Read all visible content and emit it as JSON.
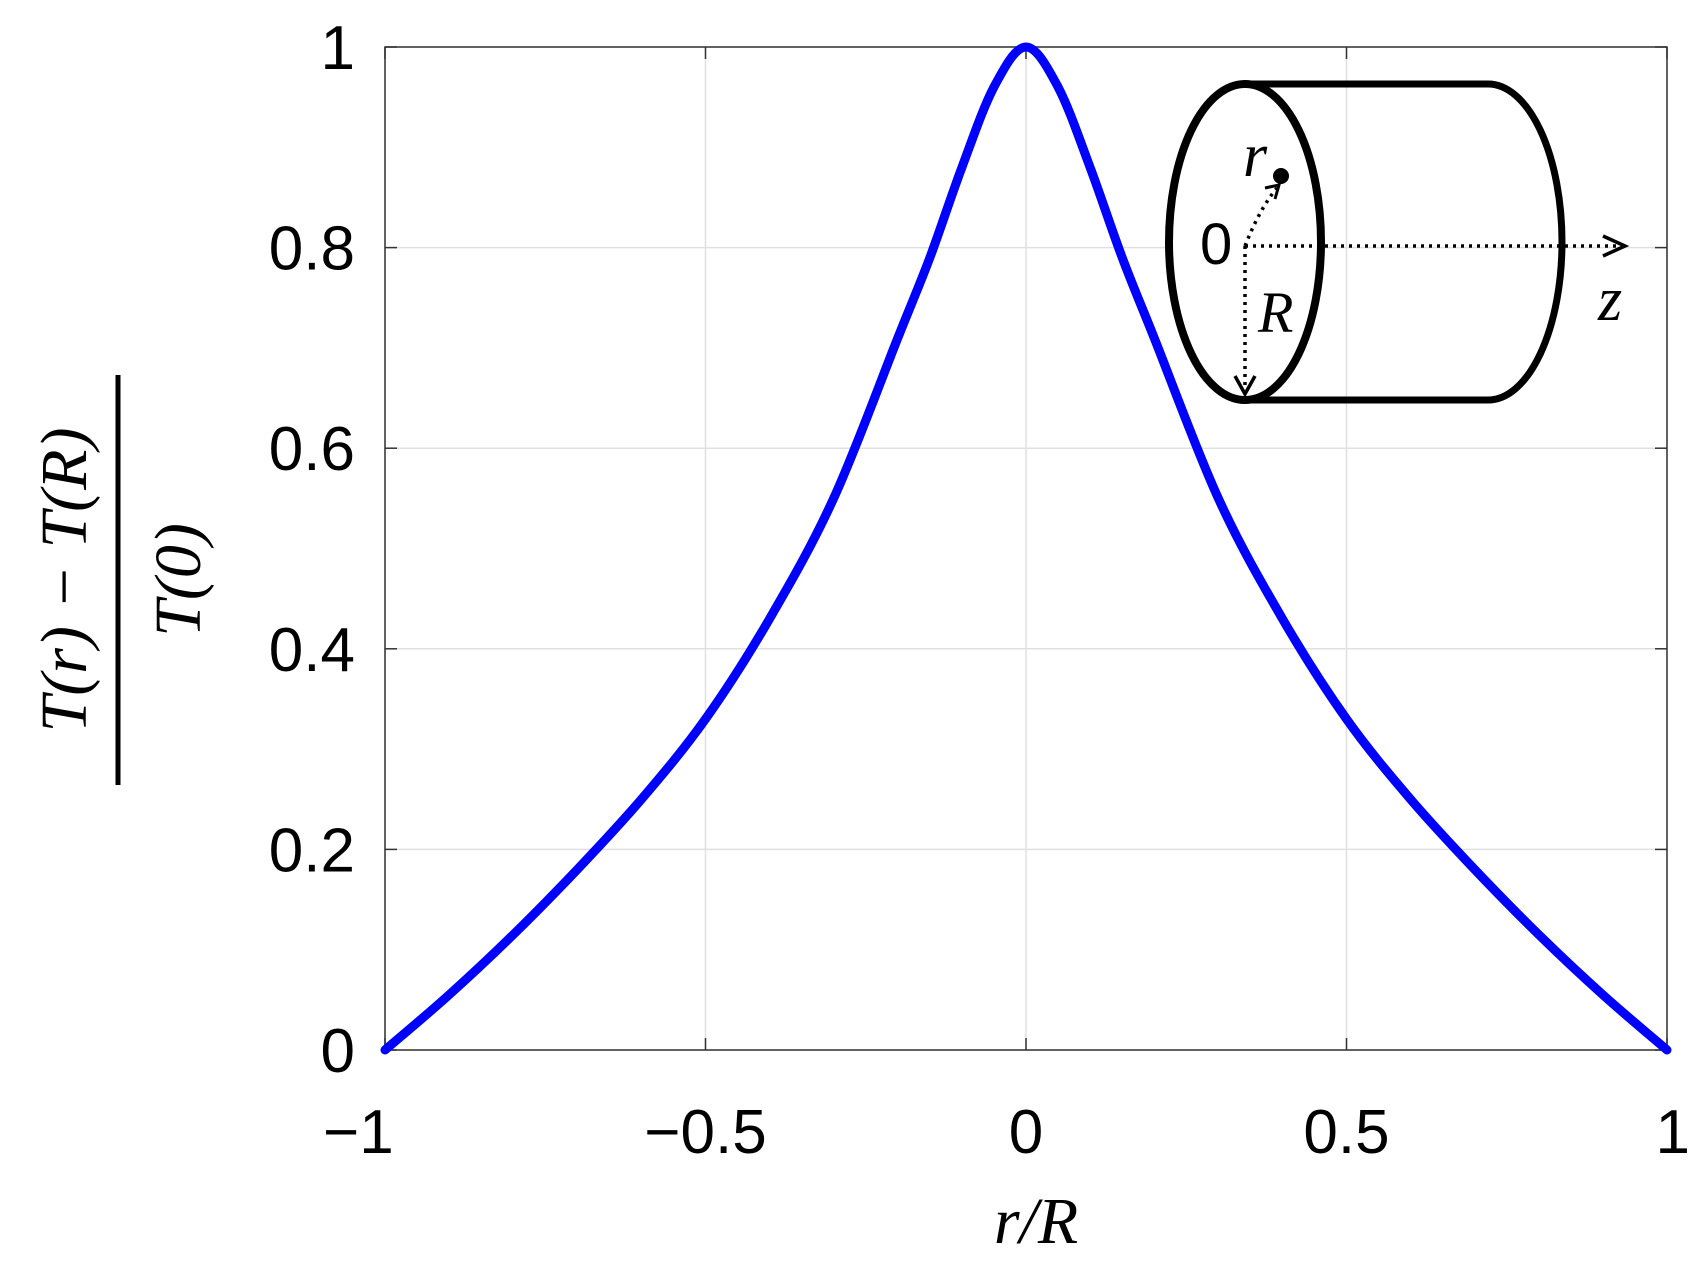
{
  "chart_data": {
    "type": "line",
    "title": "",
    "xlabel": "r/R",
    "ylabel_numerator": "T(r) − T(R)",
    "ylabel_denominator": "T(0)",
    "xlim": [
      -1,
      1
    ],
    "ylim": [
      0,
      1
    ],
    "grid": true,
    "x_ticks": [
      -1,
      -0.5,
      0,
      0.5,
      1
    ],
    "x_tick_labels": [
      "−1",
      "−0.5",
      "0",
      "0.5",
      "1"
    ],
    "y_ticks": [
      0,
      0.2,
      0.4,
      0.6,
      0.8,
      1
    ],
    "y_tick_labels": [
      "0",
      "0.2",
      "0.4",
      "0.6",
      "0.8",
      "1"
    ],
    "series": [
      {
        "color": "#0000ff",
        "x": [
          -1.0,
          -0.9,
          -0.8,
          -0.7,
          -0.6,
          -0.5,
          -0.4,
          -0.3,
          -0.2,
          -0.15,
          -0.1,
          -0.05,
          0.0,
          0.05,
          0.1,
          0.15,
          0.2,
          0.3,
          0.4,
          0.5,
          0.6,
          0.7,
          0.8,
          0.9,
          1.0
        ],
        "y": [
          0.0,
          0.055,
          0.115,
          0.18,
          0.25,
          0.33,
          0.43,
          0.55,
          0.71,
          0.79,
          0.88,
          0.96,
          1.0,
          0.96,
          0.88,
          0.79,
          0.71,
          0.55,
          0.43,
          0.33,
          0.25,
          0.18,
          0.115,
          0.055,
          0.0
        ]
      }
    ]
  },
  "inset": {
    "origin_label": "0",
    "r_label": "r",
    "R_label": "R",
    "z_label": "z"
  }
}
